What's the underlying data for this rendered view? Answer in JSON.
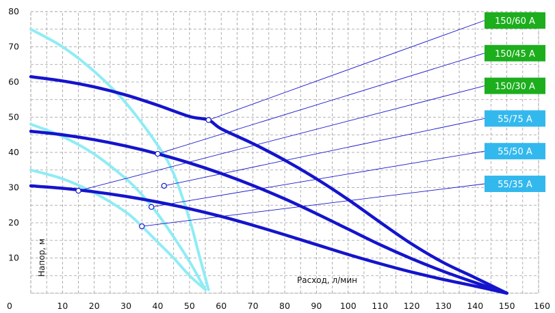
{
  "chart_data": {
    "type": "line",
    "title": "",
    "xlabel": "Расход, л/мин",
    "ylabel": "Напор, м",
    "xlim": [
      0,
      160
    ],
    "ylim": [
      0,
      80
    ],
    "x_ticks": [
      0,
      10,
      20,
      30,
      40,
      50,
      60,
      70,
      80,
      90,
      100,
      110,
      120,
      130,
      140,
      150,
      160
    ],
    "y_ticks": [
      10,
      20,
      30,
      40,
      50,
      60,
      70,
      80
    ],
    "grid": true,
    "legend_position": "right",
    "colors": {
      "light": "#8fecf5",
      "dark": "#1414cc",
      "green": "#1cae1c",
      "blue": "#33b8ee"
    },
    "series": [
      {
        "name": "150/60 A",
        "family": "dark",
        "legend_color": "green",
        "points": [
          [
            0,
            61.5
          ],
          [
            10,
            60.3
          ],
          [
            20,
            58.6
          ],
          [
            30,
            56.3
          ],
          [
            40,
            53.4
          ],
          [
            50,
            50.2
          ],
          [
            56,
            49.2
          ],
          [
            60,
            46.7
          ],
          [
            70,
            42.5
          ],
          [
            80,
            37.8
          ],
          [
            90,
            32.5
          ],
          [
            100,
            26.6
          ],
          [
            110,
            20.2
          ],
          [
            120,
            14
          ],
          [
            130,
            8.7
          ],
          [
            140,
            4.4
          ],
          [
            150,
            0
          ]
        ],
        "marker": [
          56,
          49.2
        ]
      },
      {
        "name": "150/45 A",
        "family": "dark",
        "legend_color": "green",
        "points": [
          [
            0,
            46
          ],
          [
            10,
            45
          ],
          [
            20,
            43.6
          ],
          [
            30,
            41.8
          ],
          [
            40,
            39.6
          ],
          [
            50,
            37
          ],
          [
            60,
            34
          ],
          [
            70,
            30.6
          ],
          [
            80,
            26.8
          ],
          [
            90,
            22.6
          ],
          [
            100,
            18.2
          ],
          [
            110,
            13.8
          ],
          [
            120,
            9.8
          ],
          [
            130,
            6.2
          ],
          [
            140,
            3
          ],
          [
            150,
            0
          ]
        ],
        "marker": [
          40,
          39.6
        ]
      },
      {
        "name": "150/30 A",
        "family": "dark",
        "legend_color": "green",
        "points": [
          [
            0,
            30.5
          ],
          [
            10,
            29.8
          ],
          [
            20,
            28.8
          ],
          [
            30,
            27.5
          ],
          [
            40,
            25.9
          ],
          [
            50,
            24
          ],
          [
            60,
            21.8
          ],
          [
            70,
            19.3
          ],
          [
            80,
            16.6
          ],
          [
            90,
            13.8
          ],
          [
            100,
            11
          ],
          [
            110,
            8.4
          ],
          [
            120,
            6
          ],
          [
            130,
            3.9
          ],
          [
            140,
            2
          ],
          [
            150,
            0
          ]
        ],
        "marker": [
          15,
          29.1
        ]
      },
      {
        "name": "55/75 A",
        "family": "light",
        "legend_color": "blue",
        "points": [
          [
            0,
            75
          ],
          [
            10,
            70
          ],
          [
            20,
            63
          ],
          [
            30,
            54
          ],
          [
            40,
            42
          ],
          [
            45,
            34
          ],
          [
            50,
            21
          ],
          [
            53,
            11
          ],
          [
            56,
            1
          ]
        ],
        "marker": [
          42,
          30.5
        ]
      },
      {
        "name": "55/50 A",
        "family": "light",
        "legend_color": "blue",
        "points": [
          [
            0,
            48
          ],
          [
            10,
            44.5
          ],
          [
            20,
            39.5
          ],
          [
            30,
            32.5
          ],
          [
            35,
            28
          ],
          [
            40,
            22.5
          ],
          [
            45,
            16
          ],
          [
            50,
            9
          ],
          [
            55,
            1
          ]
        ],
        "marker": [
          38,
          24.5
        ]
      },
      {
        "name": "55/35 A",
        "family": "light",
        "legend_color": "blue",
        "points": [
          [
            0,
            35
          ],
          [
            10,
            32.5
          ],
          [
            20,
            28.5
          ],
          [
            30,
            23
          ],
          [
            35,
            19
          ],
          [
            40,
            14.5
          ],
          [
            45,
            10
          ],
          [
            50,
            5
          ],
          [
            55,
            1
          ]
        ],
        "marker": [
          35,
          19
        ]
      }
    ]
  }
}
